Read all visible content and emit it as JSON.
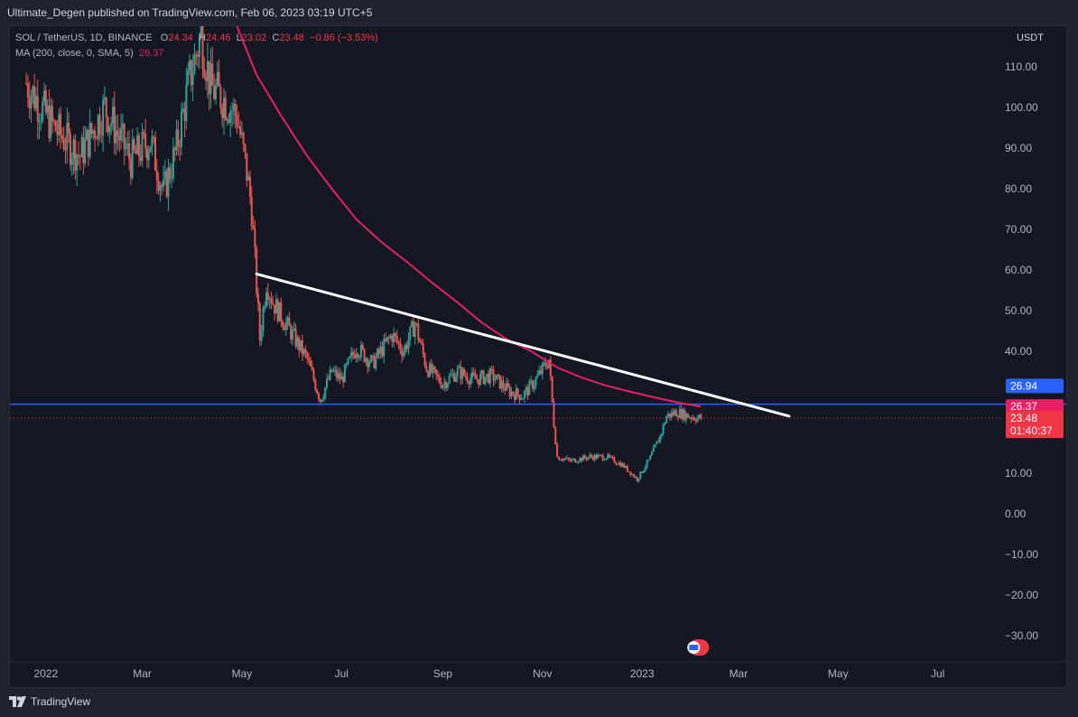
{
  "header": {
    "published": "Ultimate_Degen published on TradingView.com, Feb 06, 2023 03:19 UTC+5"
  },
  "legend": {
    "symbol": "SOL / TetherUS, 1D, BINANCE",
    "o_label": "O",
    "o": "24.34",
    "h_label": "H",
    "h": "24.46",
    "l_label": "L",
    "l": "23.02",
    "c_label": "C",
    "c": "23.48",
    "change": "−0.86 (−3.53%)",
    "ma_label": "MA (200, close, 0, SMA, 5)",
    "ma_value": "26.37"
  },
  "footer": {
    "brand": "TradingView",
    "brand_icon": "tradingview-logo-icon"
  },
  "colors": {
    "background": "#131722",
    "up": "#26a69a",
    "down": "#ef5350",
    "ma": "#e91e63",
    "support": "#2962ff",
    "trendline": "#ffffff",
    "price_line": "#f23645"
  },
  "chart_data": {
    "type": "candlestick",
    "currency_label": "USDT",
    "y_ticks": [
      "110.00",
      "100.00",
      "90.00",
      "80.00",
      "70.00",
      "60.00",
      "50.00",
      "40.00",
      "10.00",
      "0.00",
      "−10.00",
      "−20.00",
      "−30.00"
    ],
    "y_tick_values": [
      110,
      100,
      90,
      80,
      70,
      60,
      50,
      40,
      10,
      0,
      -10,
      -20,
      -30
    ],
    "ylim": [
      -36.5,
      120
    ],
    "x_ticks": [
      "2022",
      "Mar",
      "May",
      "Jul",
      "Sep",
      "Nov",
      "2023",
      "Mar",
      "May",
      "Jul"
    ],
    "x_tick_dates": [
      "2022-01-01",
      "2022-03-01",
      "2022-05-01",
      "2022-07-01",
      "2022-09-01",
      "2022-11-01",
      "2023-01-01",
      "2023-03-01",
      "2023-05-01",
      "2023-07-01"
    ],
    "xlim": [
      "2021-12-10",
      "2023-08-10"
    ],
    "price_path": [
      [
        "2021-12-20",
        106
      ],
      [
        "2022-01-06",
        95
      ],
      [
        "2022-01-22",
        88
      ],
      [
        "2022-02-06",
        100
      ],
      [
        "2022-02-22",
        87
      ],
      [
        "2022-03-06",
        92
      ],
      [
        "2022-03-14",
        79
      ],
      [
        "2022-03-22",
        90
      ],
      [
        "2022-03-30",
        107
      ],
      [
        "2022-04-06",
        118
      ],
      [
        "2022-04-12",
        105
      ],
      [
        "2022-04-20",
        102
      ],
      [
        "2022-04-28",
        98
      ],
      [
        "2022-05-04",
        84
      ],
      [
        "2022-05-07",
        75
      ],
      [
        "2022-05-12",
        43
      ],
      [
        "2022-05-16",
        57
      ],
      [
        "2022-05-20",
        52
      ],
      [
        "2022-06-01",
        44
      ],
      [
        "2022-06-10",
        38
      ],
      [
        "2022-06-18",
        28
      ],
      [
        "2022-06-25",
        35
      ],
      [
        "2022-07-01",
        33
      ],
      [
        "2022-07-10",
        41
      ],
      [
        "2022-07-20",
        37
      ],
      [
        "2022-08-01",
        44
      ],
      [
        "2022-08-08",
        40
      ],
      [
        "2022-08-15",
        47
      ],
      [
        "2022-08-22",
        36
      ],
      [
        "2022-09-01",
        32
      ],
      [
        "2022-09-10",
        35
      ],
      [
        "2022-09-20",
        33
      ],
      [
        "2022-10-01",
        34
      ],
      [
        "2022-10-12",
        30
      ],
      [
        "2022-10-20",
        29
      ],
      [
        "2022-10-28",
        33
      ],
      [
        "2022-11-05",
        38
      ],
      [
        "2022-11-08",
        22
      ],
      [
        "2022-11-10",
        14
      ],
      [
        "2022-11-18",
        13
      ],
      [
        "2022-11-30",
        14
      ],
      [
        "2022-12-10",
        14
      ],
      [
        "2022-12-20",
        12
      ],
      [
        "2022-12-29",
        8.5
      ],
      [
        "2023-01-05",
        13
      ],
      [
        "2023-01-12",
        19
      ],
      [
        "2023-01-16",
        24
      ],
      [
        "2023-01-22",
        25
      ],
      [
        "2023-01-30",
        24
      ],
      [
        "2023-02-06",
        23.48
      ]
    ],
    "ma200": {
      "name": "MA (200, close, 0, SMA, 5)",
      "last": 26.37,
      "points": [
        [
          "2022-04-28",
          120
        ],
        [
          "2022-05-10",
          108
        ],
        [
          "2022-05-25",
          98
        ],
        [
          "2022-06-10",
          88
        ],
        [
          "2022-06-25",
          80
        ],
        [
          "2022-07-10",
          72.5
        ],
        [
          "2022-07-25",
          67
        ],
        [
          "2022-08-10",
          62
        ],
        [
          "2022-08-25",
          57
        ],
        [
          "2022-09-10",
          52
        ],
        [
          "2022-09-25",
          47
        ],
        [
          "2022-10-10",
          43
        ],
        [
          "2022-10-25",
          40
        ],
        [
          "2022-11-10",
          36
        ],
        [
          "2022-11-25",
          33.5
        ],
        [
          "2022-12-10",
          31.5
        ],
        [
          "2022-12-25",
          30
        ],
        [
          "2023-01-10",
          28.5
        ],
        [
          "2023-01-25",
          27.2
        ],
        [
          "2023-02-06",
          26.37
        ]
      ]
    },
    "trendline": {
      "start": [
        "2022-05-10",
        59
      ],
      "end": [
        "2023-04-01",
        24
      ]
    },
    "support_level": 26.94,
    "last_price": 23.48,
    "price_labels": {
      "support": "26.94",
      "ma": "26.37",
      "last": "23.48",
      "countdown": "01:40:37"
    }
  }
}
